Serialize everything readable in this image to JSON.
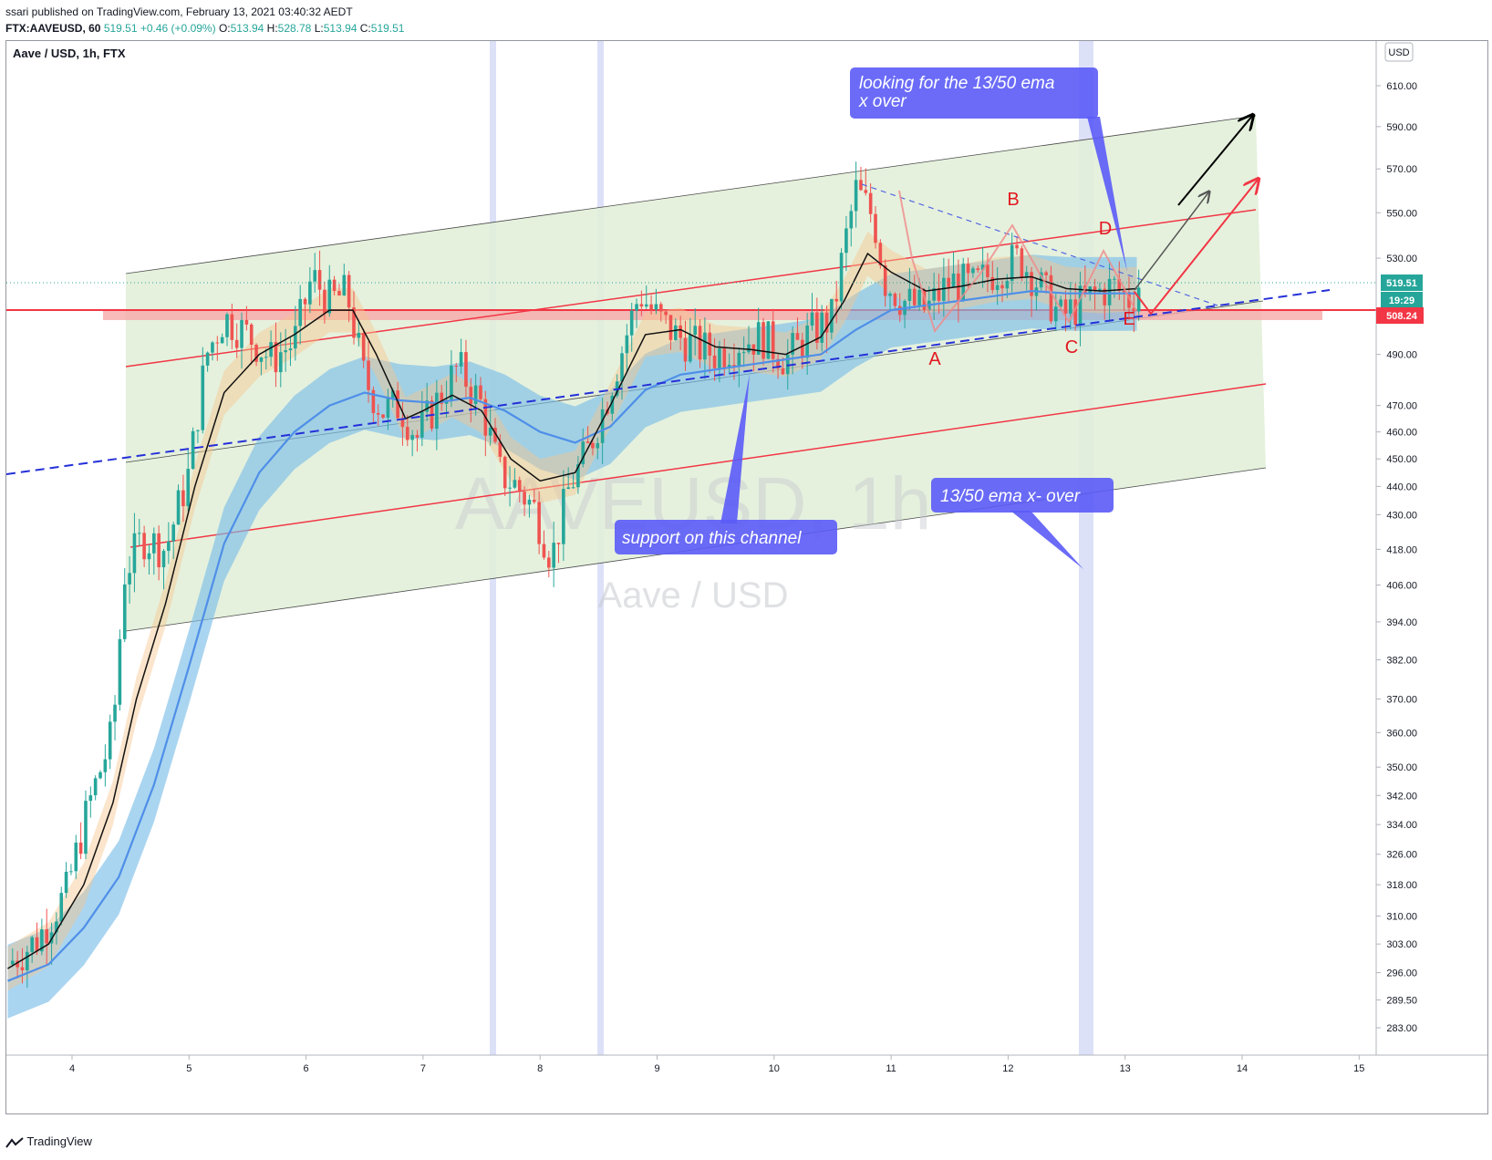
{
  "header": {
    "published": "ssari published on TradingView.com, February 13, 2021 03:40:32 AEDT",
    "symbol": "FTX:AAVEUSD, 60",
    "last": "519.51",
    "change": "+0.46 (+0.09%)",
    "o_label": "O:",
    "o_value": "513.94",
    "h_label": "H:",
    "h_value": "528.78",
    "l_label": "L:",
    "l_value": "513.94",
    "c_label": "C:",
    "c_value": "519.51"
  },
  "chart_title": "Aave / USD, 1h, FTX",
  "watermark": {
    "symbol": "AAVEUSD, 1h",
    "name": "Aave / USD"
  },
  "currency_button": "USD",
  "price_tags": {
    "last": "519.51",
    "countdown": "19:29",
    "level": "508.24"
  },
  "annotations": {
    "callout_top": [
      "looking for the 13/50 ema",
      "x over"
    ],
    "callout_support": "support on this channel",
    "callout_cross": "13/50 ema x- over",
    "wave_labels": [
      "A",
      "B",
      "C",
      "D",
      "E"
    ]
  },
  "footer": "TradingView",
  "colors": {
    "bull": "#26a69a",
    "bear": "#ef5350",
    "channel_fill": "#e2efd9",
    "ema_fast_band": "#f6c68e",
    "ema_slow_band": "#7cbfe8",
    "callout": "#5b5bf7",
    "red_line": "#f23645"
  },
  "chart_data": {
    "type": "candlestick",
    "xlabel": "",
    "ylabel": "",
    "x_ticks": [
      "4",
      "5",
      "6",
      "7",
      "8",
      "9",
      "10",
      "11",
      "12",
      "13",
      "14",
      "15"
    ],
    "y_ticks": [
      610.0,
      590.0,
      570.0,
      550.0,
      530.0,
      490.0,
      470.0,
      460.0,
      450.0,
      440.0,
      430.0,
      418.0,
      406.0,
      394.0,
      382.0,
      370.0,
      360.0,
      350.0,
      342.0,
      334.0,
      326.0,
      318.0,
      310.0,
      303.0,
      296.0,
      289.5,
      283.0
    ],
    "y_scale": "log",
    "ylim": [
      278,
      618
    ],
    "close_path": [
      [
        3.45,
        298
      ],
      [
        3.7,
        304
      ],
      [
        3.95,
        316
      ],
      [
        4.15,
        340
      ],
      [
        4.35,
        360
      ],
      [
        4.45,
        410
      ],
      [
        4.6,
        422
      ],
      [
        4.8,
        418
      ],
      [
        5.0,
        445
      ],
      [
        5.15,
        490
      ],
      [
        5.3,
        505
      ],
      [
        5.5,
        498
      ],
      [
        5.7,
        488
      ],
      [
        5.9,
        495
      ],
      [
        6.05,
        522
      ],
      [
        6.2,
        512
      ],
      [
        6.35,
        515
      ],
      [
        6.5,
        480
      ],
      [
        6.65,
        468
      ],
      [
        6.8,
        470
      ],
      [
        6.95,
        458
      ],
      [
        7.1,
        470
      ],
      [
        7.3,
        485
      ],
      [
        7.5,
        470
      ],
      [
        7.65,
        445
      ],
      [
        7.8,
        440
      ],
      [
        7.95,
        432
      ],
      [
        8.1,
        415
      ],
      [
        8.25,
        440
      ],
      [
        8.4,
        452
      ],
      [
        8.55,
        470
      ],
      [
        8.7,
        492
      ],
      [
        8.85,
        515
      ],
      [
        9.0,
        505
      ],
      [
        9.15,
        498
      ],
      [
        9.3,
        494
      ],
      [
        9.5,
        490
      ],
      [
        9.7,
        495
      ],
      [
        9.9,
        497
      ],
      [
        10.1,
        488
      ],
      [
        10.3,
        498
      ],
      [
        10.5,
        505
      ],
      [
        10.6,
        535
      ],
      [
        10.7,
        560
      ],
      [
        10.85,
        548
      ],
      [
        10.95,
        520
      ],
      [
        11.1,
        512
      ],
      [
        11.3,
        508
      ],
      [
        11.5,
        520
      ],
      [
        11.7,
        518
      ],
      [
        11.9,
        525
      ],
      [
        12.1,
        530
      ],
      [
        12.3,
        516
      ],
      [
        12.45,
        505
      ],
      [
        12.6,
        510
      ],
      [
        12.75,
        515
      ],
      [
        12.9,
        518
      ],
      [
        13.05,
        512
      ],
      [
        13.12,
        519.51
      ]
    ],
    "ema13": [
      [
        3.45,
        297
      ],
      [
        3.8,
        303
      ],
      [
        4.1,
        318
      ],
      [
        4.35,
        340
      ],
      [
        4.55,
        370
      ],
      [
        4.8,
        400
      ],
      [
        5.05,
        440
      ],
      [
        5.3,
        475
      ],
      [
        5.6,
        490
      ],
      [
        5.9,
        498
      ],
      [
        6.2,
        508
      ],
      [
        6.4,
        508
      ],
      [
        6.6,
        490
      ],
      [
        6.85,
        465
      ],
      [
        7.0,
        468
      ],
      [
        7.25,
        474
      ],
      [
        7.5,
        468
      ],
      [
        7.75,
        450
      ],
      [
        8.0,
        442
      ],
      [
        8.3,
        445
      ],
      [
        8.6,
        470
      ],
      [
        8.9,
        498
      ],
      [
        9.2,
        500
      ],
      [
        9.5,
        493
      ],
      [
        9.8,
        492
      ],
      [
        10.1,
        490
      ],
      [
        10.4,
        497
      ],
      [
        10.6,
        512
      ],
      [
        10.8,
        532
      ],
      [
        11.0,
        524
      ],
      [
        11.3,
        516
      ],
      [
        11.6,
        518
      ],
      [
        11.9,
        521
      ],
      [
        12.2,
        522
      ],
      [
        12.5,
        517
      ],
      [
        12.8,
        516
      ],
      [
        13.1,
        517
      ]
    ],
    "ema50": [
      [
        3.45,
        294
      ],
      [
        3.8,
        298
      ],
      [
        4.1,
        307
      ],
      [
        4.4,
        320
      ],
      [
        4.7,
        345
      ],
      [
        5.0,
        380
      ],
      [
        5.3,
        420
      ],
      [
        5.6,
        445
      ],
      [
        5.9,
        460
      ],
      [
        6.2,
        470
      ],
      [
        6.5,
        475
      ],
      [
        6.8,
        472
      ],
      [
        7.1,
        471
      ],
      [
        7.4,
        473
      ],
      [
        7.7,
        468
      ],
      [
        8.0,
        460
      ],
      [
        8.3,
        456
      ],
      [
        8.6,
        462
      ],
      [
        8.9,
        476
      ],
      [
        9.2,
        482
      ],
      [
        9.5,
        484
      ],
      [
        9.8,
        486
      ],
      [
        10.1,
        488
      ],
      [
        10.4,
        490
      ],
      [
        10.7,
        500
      ],
      [
        11.0,
        508
      ],
      [
        11.3,
        510
      ],
      [
        11.6,
        512
      ],
      [
        11.9,
        514
      ],
      [
        12.2,
        516
      ],
      [
        12.5,
        515
      ],
      [
        12.8,
        515
      ],
      [
        13.1,
        515
      ]
    ],
    "levels": {
      "horizontal_support": 508.24,
      "last_price": 519.51
    },
    "wave_points": {
      "A": [
        11.4,
        498
      ],
      "B": [
        12.05,
        538
      ],
      "C": [
        12.5,
        500
      ],
      "D": [
        12.8,
        526
      ],
      "E": [
        13.05,
        504
      ]
    }
  }
}
